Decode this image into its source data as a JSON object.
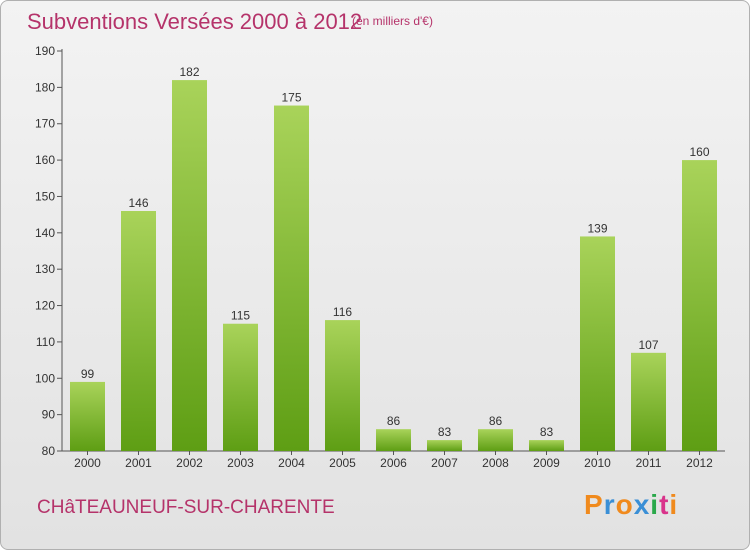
{
  "header": {
    "title": "Subventions Versées 2000 à 2012",
    "subtitle": "(en milliers d'€)"
  },
  "footer": {
    "city": "CHâTEAUNEUF-SUR-CHARENTE",
    "brand": "Proxiti",
    "brand_colors": [
      "#f08a1d",
      "#3a8fd6",
      "#f08a1d",
      "#3a8fd6",
      "#2aa84a",
      "#d9338b",
      "#f08a1d"
    ]
  },
  "colors": {
    "bar_light": "#a9d35a",
    "bar_dark": "#5e9e14",
    "title": "#b5336a",
    "axis": "#555555"
  },
  "chart_data": {
    "type": "bar",
    "categories": [
      "2000",
      "2001",
      "2002",
      "2003",
      "2004",
      "2005",
      "2006",
      "2007",
      "2008",
      "2009",
      "2010",
      "2011",
      "2012"
    ],
    "values": [
      99,
      146,
      182,
      115,
      175,
      116,
      86,
      83,
      86,
      83,
      139,
      107,
      160
    ],
    "ylim": [
      80,
      190
    ],
    "yticks": [
      80,
      90,
      100,
      110,
      120,
      130,
      140,
      150,
      160,
      170,
      180,
      190
    ],
    "grid": false,
    "data_labels": true
  }
}
